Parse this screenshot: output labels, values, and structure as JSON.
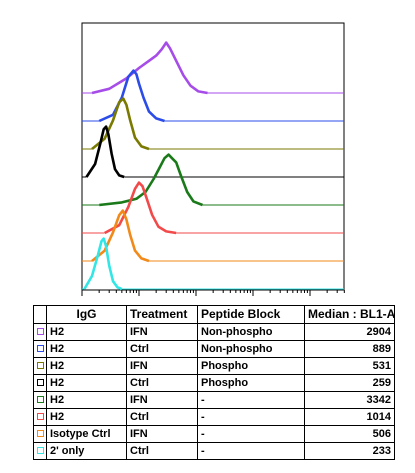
{
  "chart_data": {
    "type": "histogram-overlay",
    "x_scale": "log",
    "table_headers": {
      "col1": "IgG",
      "col2": "Treatment",
      "col3": "Peptide Block",
      "col4": "Median : BL1-A"
    },
    "series": [
      {
        "igg": "H2",
        "treatment": "IFN",
        "peptide_block": "Non-phospho",
        "median": "2904",
        "color": "#a64ce8",
        "x": [
          150,
          300,
          600,
          1000,
          1500,
          2000,
          2500,
          3000,
          3500,
          4500,
          6000,
          8000,
          11000,
          16000
        ],
        "y": [
          0.0,
          0.08,
          0.28,
          0.48,
          0.62,
          0.72,
          0.84,
          0.97,
          0.86,
          0.62,
          0.34,
          0.14,
          0.03,
          0.0
        ]
      },
      {
        "igg": "H2",
        "treatment": "Ctrl",
        "peptide_block": "Non-phospho",
        "median": "889",
        "color": "#2b4ce8",
        "x": [
          200,
          350,
          500,
          650,
          800,
          900,
          1000,
          1200,
          1500,
          2000,
          2800
        ],
        "y": [
          0.0,
          0.12,
          0.45,
          0.85,
          0.97,
          0.9,
          0.72,
          0.45,
          0.18,
          0.05,
          0.0
        ]
      },
      {
        "igg": "H2",
        "treatment": "IFN",
        "peptide_block": "Phospho",
        "median": "531",
        "color": "#7a7a00",
        "x": [
          150,
          250,
          350,
          450,
          530,
          600,
          700,
          850,
          1100,
          1500
        ],
        "y": [
          0.0,
          0.2,
          0.55,
          0.9,
          0.97,
          0.85,
          0.55,
          0.22,
          0.05,
          0.0
        ]
      },
      {
        "igg": "H2",
        "treatment": "Ctrl",
        "peptide_block": "Phospho",
        "median": "259",
        "color": "#000000",
        "x": [
          120,
          170,
          210,
          240,
          265,
          290,
          330,
          380,
          450,
          550
        ],
        "y": [
          0.0,
          0.25,
          0.65,
          0.92,
          0.97,
          0.82,
          0.45,
          0.15,
          0.03,
          0.0
        ]
      },
      {
        "igg": "H2",
        "treatment": "IFN",
        "peptide_block": "-",
        "median": "3342",
        "color": "#1a7a1a",
        "x": [
          200,
          500,
          900,
          1300,
          1800,
          2300,
          2800,
          3300,
          3800,
          4500,
          5500,
          7000,
          9000,
          13000
        ],
        "y": [
          0.0,
          0.05,
          0.12,
          0.25,
          0.5,
          0.72,
          0.9,
          0.97,
          0.9,
          0.82,
          0.55,
          0.25,
          0.07,
          0.0
        ]
      },
      {
        "igg": "H2",
        "treatment": "Ctrl",
        "peptide_block": "-",
        "median": "1014",
        "color": "#f24a4a",
        "x": [
          250,
          450,
          650,
          850,
          1000,
          1150,
          1350,
          1700,
          2200,
          3000,
          4500
        ],
        "y": [
          0.0,
          0.15,
          0.5,
          0.85,
          0.97,
          0.9,
          0.68,
          0.35,
          0.12,
          0.03,
          0.0
        ]
      },
      {
        "igg": "Isotype Ctrl",
        "treatment": "IFN",
        "peptide_block": "-",
        "median": "506",
        "color": "#f28a1a",
        "x": [
          150,
          250,
          350,
          450,
          520,
          600,
          700,
          850,
          1100,
          1500
        ],
        "y": [
          0.0,
          0.2,
          0.55,
          0.88,
          0.97,
          0.8,
          0.5,
          0.2,
          0.05,
          0.0
        ]
      },
      {
        "igg": "2' only",
        "treatment": "Ctrl",
        "peptide_block": "-",
        "median": "233",
        "color": "#33e6e6",
        "x": [
          110,
          150,
          190,
          220,
          240,
          265,
          300,
          350,
          420,
          500
        ],
        "y": [
          0.0,
          0.25,
          0.65,
          0.92,
          0.97,
          0.82,
          0.45,
          0.15,
          0.03,
          0.0
        ]
      }
    ]
  }
}
